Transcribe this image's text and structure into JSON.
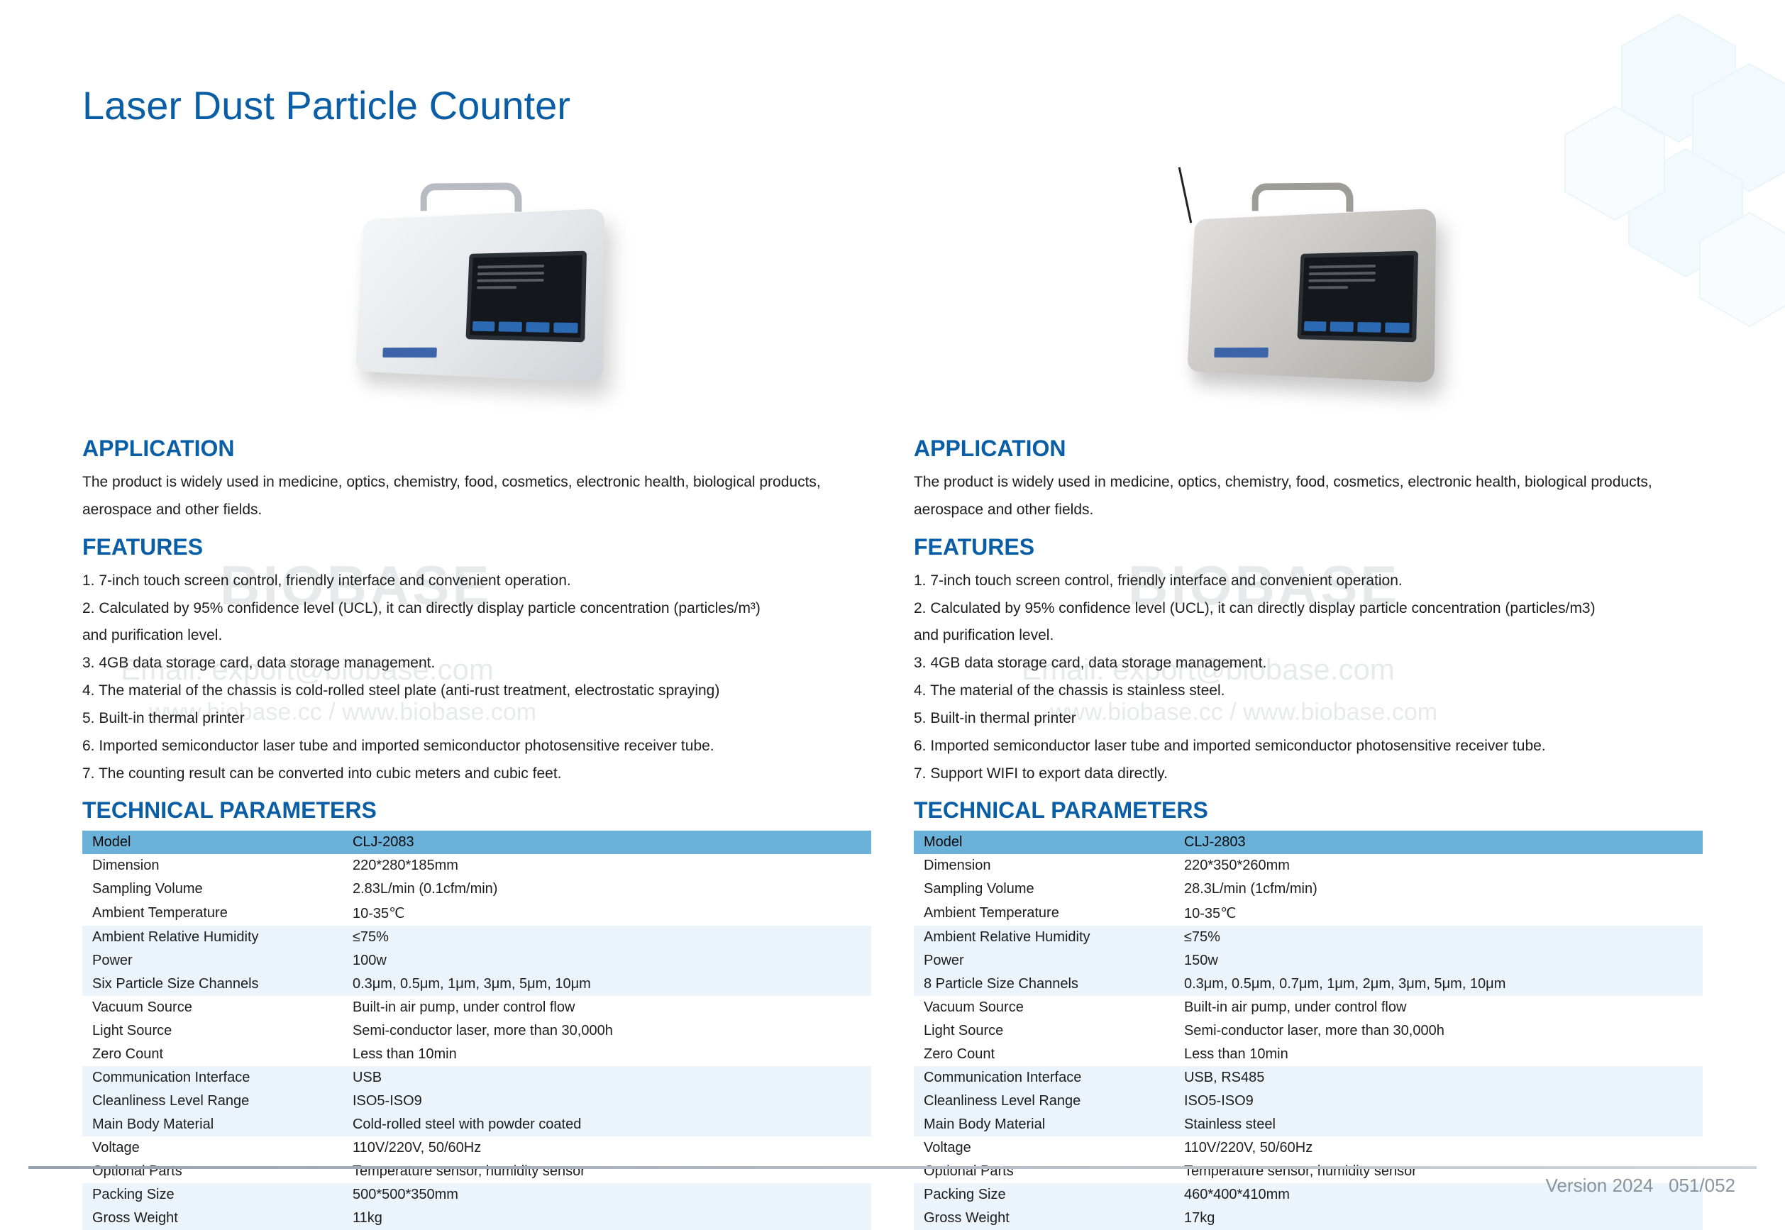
{
  "page_title": "Laser Dust Particle Counter",
  "watermarks": {
    "brand": "BIOBASE",
    "email": "Email: export@biobase.com",
    "site": "www.biobase.cc / www.biobase.com"
  },
  "footer": {
    "version": "Version 2024",
    "pages": "051/052"
  },
  "hex_colors": {
    "fill": "#dff1fb",
    "stroke": "#bfe3f3"
  },
  "left": {
    "application_h": "APPLICATION",
    "application_text": "The product is widely used in medicine, optics, chemistry, food, cosmetics, electronic health, biological products, aerospace and other fields.",
    "features_h": "FEATURES",
    "features": [
      "1. 7-inch touch screen control, friendly interface and convenient operation.",
      "2. Calculated by 95% confidence level (UCL), it can directly display particle concentration (particles/m³)",
      "    and purification level.",
      "3. 4GB data storage card, data storage management.",
      "4. The material of the chassis is cold-rolled steel plate (anti-rust treatment, electrostatic spraying)",
      "5. Built-in thermal printer",
      "6. Imported semiconductor laser tube and imported semiconductor photosensitive receiver tube.",
      "7. The counting result can be converted into cubic meters and cubic feet."
    ],
    "tech_h": "TECHNICAL PARAMETERS",
    "table": {
      "rows": [
        {
          "band": "head",
          "label": "Model",
          "value": "CLJ-2083"
        },
        {
          "band": "white",
          "label": "Dimension",
          "value": "220*280*185mm"
        },
        {
          "band": "white",
          "label": "Sampling Volume",
          "value": "2.83L/min (0.1cfm/min)"
        },
        {
          "band": "white",
          "label": "Ambient Temperature",
          "value": "10-35℃"
        },
        {
          "band": "light",
          "label": "Ambient Relative Humidity",
          "value": "≤75%"
        },
        {
          "band": "light",
          "label": "Power",
          "value": "100w"
        },
        {
          "band": "light",
          "label": "Six Particle Size Channels",
          "value": "0.3μm, 0.5μm, 1μm, 3μm, 5μm, 10μm"
        },
        {
          "band": "white",
          "label": "Vacuum Source",
          "value": "Built-in air pump, under control flow"
        },
        {
          "band": "white",
          "label": "Light Source",
          "value": "Semi-conductor laser, more than 30,000h"
        },
        {
          "band": "white",
          "label": "Zero Count",
          "value": "Less than 10min"
        },
        {
          "band": "light",
          "label": "Communication Interface",
          "value": "USB"
        },
        {
          "band": "light",
          "label": "Cleanliness Level Range",
          "value": "ISO5-ISO9"
        },
        {
          "band": "light",
          "label": "Main Body Material",
          "value": "Cold-rolled steel with powder coated"
        },
        {
          "band": "white",
          "label": "Voltage",
          "value": "110V/220V, 50/60Hz"
        },
        {
          "band": "white",
          "label": "Optional Parts",
          "value": "Temperature sensor, humidity sensor"
        },
        {
          "band": "light",
          "label": "Packing Size",
          "value": "500*500*350mm"
        },
        {
          "band": "light",
          "label": "Gross Weight",
          "value": "11kg"
        }
      ]
    }
  },
  "right": {
    "application_h": "APPLICATION",
    "application_text": "The product is widely used in medicine, optics, chemistry, food, cosmetics, electronic health, biological products, aerospace and other fields.",
    "features_h": "FEATURES",
    "features": [
      "1. 7-inch touch screen control, friendly interface and convenient operation.",
      "2. Calculated by 95% confidence level (UCL), it can directly display particle concentration (particles/m3)",
      "    and purification level.",
      "3. 4GB data storage card, data storage management.",
      "4. The material of the chassis is stainless steel.",
      "5. Built-in thermal printer",
      "6. Imported semiconductor laser tube and imported semiconductor photosensitive receiver tube.",
      "7. Support WIFI to export data directly."
    ],
    "tech_h": "TECHNICAL PARAMETERS",
    "table": {
      "rows": [
        {
          "band": "head",
          "label": "Model",
          "value": "CLJ-2803"
        },
        {
          "band": "white",
          "label": "Dimension",
          "value": "220*350*260mm"
        },
        {
          "band": "white",
          "label": "Sampling Volume",
          "value": "28.3L/min (1cfm/min)"
        },
        {
          "band": "white",
          "label": "Ambient Temperature",
          "value": "10-35℃"
        },
        {
          "band": "light",
          "label": "Ambient Relative Humidity",
          "value": "≤75%"
        },
        {
          "band": "light",
          "label": "Power",
          "value": "150w"
        },
        {
          "band": "light",
          "label": "8 Particle Size Channels",
          "value": "0.3μm, 0.5μm, 0.7μm, 1μm, 2μm, 3μm, 5μm, 10μm"
        },
        {
          "band": "white",
          "label": "Vacuum Source",
          "value": "Built-in air pump, under control flow"
        },
        {
          "band": "white",
          "label": "Light Source",
          "value": "Semi-conductor laser, more than 30,000h"
        },
        {
          "band": "white",
          "label": "Zero Count",
          "value": "Less than 10min"
        },
        {
          "band": "light",
          "label": "Communication Interface",
          "value": "USB, RS485"
        },
        {
          "band": "light",
          "label": "Cleanliness Level Range",
          "value": "ISO5-ISO9"
        },
        {
          "band": "light",
          "label": "Main Body Material",
          "value": "Stainless steel"
        },
        {
          "band": "white",
          "label": "Voltage",
          "value": "110V/220V, 50/60Hz"
        },
        {
          "band": "white",
          "label": "Optional Parts",
          "value": "Temperature sensor, humidity sensor"
        },
        {
          "band": "light",
          "label": "Packing Size",
          "value": "460*400*410mm"
        },
        {
          "band": "light",
          "label": "Gross Weight",
          "value": "17kg"
        }
      ]
    }
  }
}
